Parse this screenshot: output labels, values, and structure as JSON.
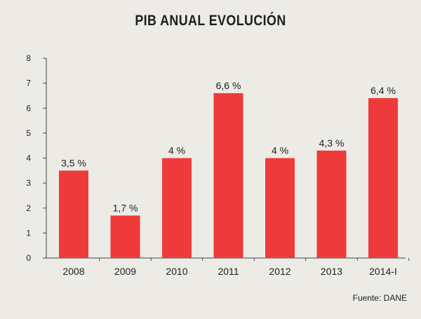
{
  "chart_data": {
    "type": "bar",
    "title": "PIB ANUAL EVOLUCIÓN",
    "categories": [
      "2008",
      "2009",
      "2010",
      "2011",
      "2012",
      "2013",
      "2014-I"
    ],
    "values": [
      3.5,
      1.7,
      4,
      6.6,
      4,
      4.3,
      6.4
    ],
    "data_labels": [
      "3,5 %",
      "1,7 %",
      "4 %",
      "6,6 %",
      "4 %",
      "4,3 %",
      "6,4 %"
    ],
    "ylim": [
      0,
      8
    ],
    "yticks": [
      "0",
      "1",
      "2",
      "3",
      "4",
      "5",
      "6",
      "7",
      "8"
    ],
    "xlabel": "",
    "ylabel": "",
    "grid": false,
    "bar_color": "#ee3a3a",
    "axis_color": "#444444"
  },
  "source": "Fuente: DANE"
}
